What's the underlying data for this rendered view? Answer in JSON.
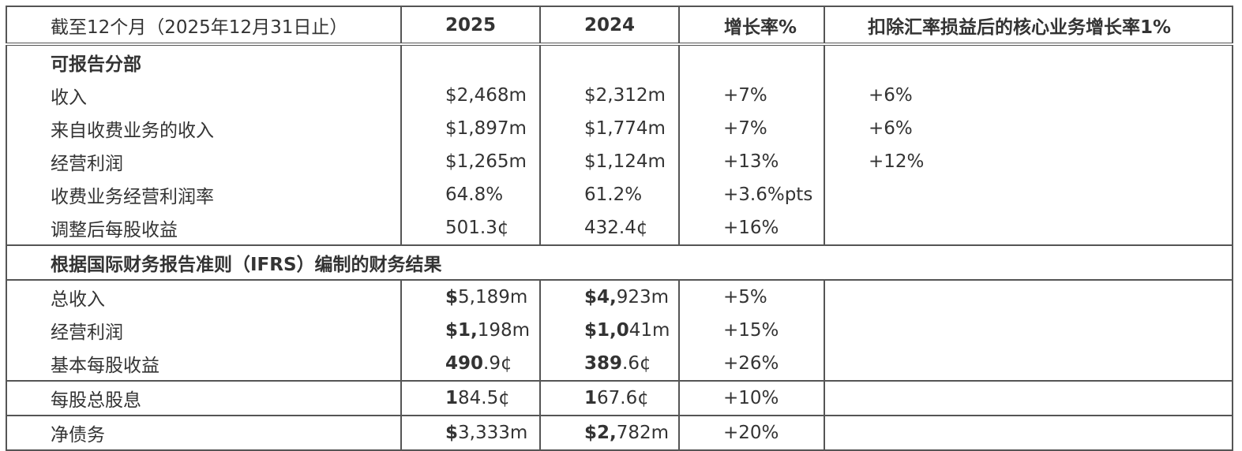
{
  "header": {
    "period": "截至12个月（2025年12月31日止）",
    "y2025": "2025",
    "y2024": "2024",
    "growth": "增长率%",
    "core_growth": "扣除汇率损益后的核心业务增长率1%"
  },
  "section1": {
    "title": "可报告分部",
    "rows": [
      {
        "label": "收入",
        "v2025": "$2,468m",
        "v2024": "$2,312m",
        "growth": "+7%",
        "core": "+6%"
      },
      {
        "label": "来自收费业务的收入",
        "v2025": "$1,897m",
        "v2024": "$1,774m",
        "growth": "+7%",
        "core": "+6%"
      },
      {
        "label": "经营利润",
        "v2025": "$1,265m",
        "v2024": "$1,124m",
        "growth": "+13%",
        "core": "+12%"
      },
      {
        "label": "收费业务经营利润率",
        "v2025": "64.8%",
        "v2024": "61.2%",
        "growth": "+3.6%pts",
        "core": ""
      },
      {
        "label": "调整后每股收益",
        "v2025": "501.3¢",
        "v2024": "432.4¢",
        "growth": "+16%",
        "core": ""
      }
    ]
  },
  "section2": {
    "title": "根据国际财务报告准则（IFRS）编制的财务结果",
    "rows": [
      {
        "label": "总收入",
        "v2025": {
          "bold": "$",
          "rest": "5,189m"
        },
        "v2024": {
          "bold": "$4,",
          "rest": "923m"
        },
        "growth": "+5%"
      },
      {
        "label": "经营利润",
        "v2025": {
          "bold": "$1,",
          "rest": "198m"
        },
        "v2024": {
          "bold": "$1,0",
          "rest": "41m"
        },
        "growth": "+15%"
      },
      {
        "label": "基本每股收益",
        "v2025": {
          "bold": "490",
          "rest": ".9¢"
        },
        "v2024": {
          "bold": "389",
          "rest": ".6¢"
        },
        "growth": "+26%"
      }
    ]
  },
  "dividend": {
    "label": "每股总股息",
    "v2025": {
      "bold": "1",
      "rest": "84.5¢"
    },
    "v2024": {
      "bold": "1",
      "rest": "67.6¢"
    },
    "growth": "+10%"
  },
  "net_debt": {
    "label": "净债务",
    "v2025": {
      "bold": "$",
      "rest": "3,333m"
    },
    "v2024": {
      "bold": "$2,",
      "rest": "782m"
    },
    "growth": "+20%"
  }
}
